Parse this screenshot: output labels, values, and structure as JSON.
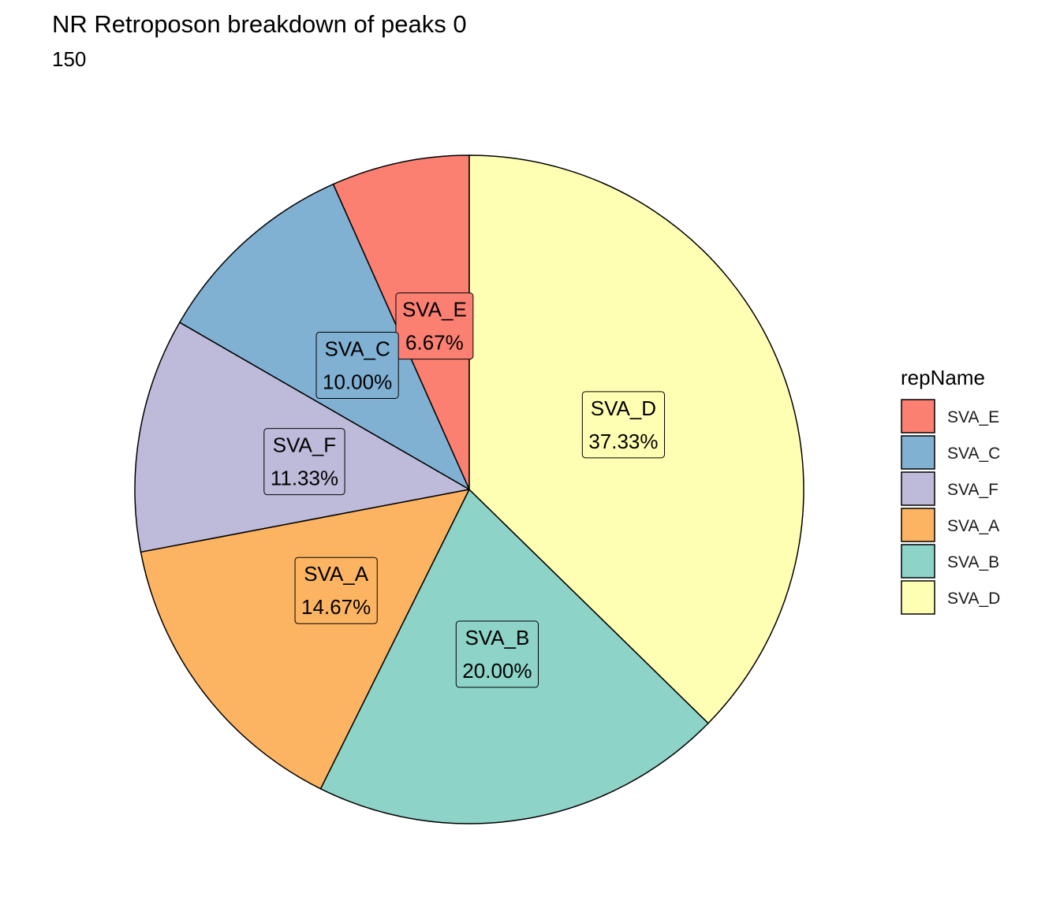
{
  "chart_data": {
    "type": "pie",
    "title": "NR Retroposon breakdown of peaks 0",
    "subtitle": "150",
    "legend_title": "repName",
    "legend_position": "right",
    "categories": [
      "SVA_E",
      "SVA_C",
      "SVA_F",
      "SVA_A",
      "SVA_B",
      "SVA_D"
    ],
    "values": [
      6.67,
      10.0,
      11.33,
      14.67,
      20.0,
      37.33
    ],
    "labels": [
      "6.67%",
      "10.00%",
      "11.33%",
      "14.67%",
      "20.00%",
      "37.33%"
    ],
    "colors": [
      "#FB8072",
      "#80B1D3",
      "#BEBADA",
      "#FDB462",
      "#8DD3C7",
      "#FFFFB3"
    ],
    "direction": "counterclockwise",
    "start": "top"
  }
}
